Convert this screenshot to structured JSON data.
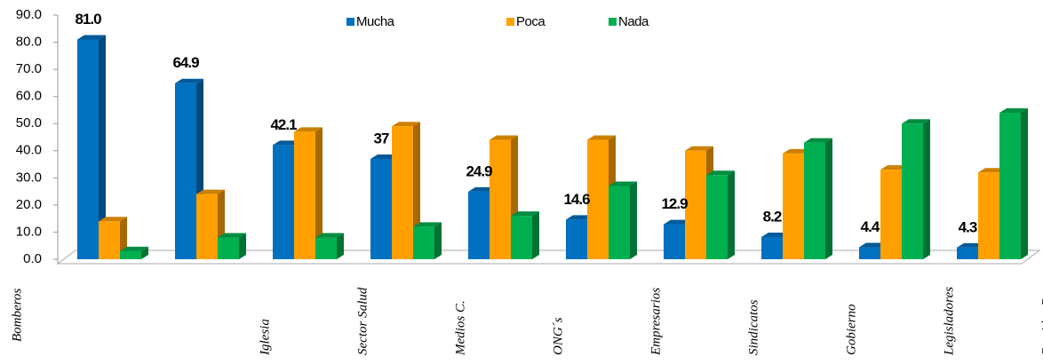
{
  "chart_data": {
    "type": "bar",
    "categories": [
      "Bomberos",
      "Iglesia",
      "Sector Salud",
      "Medios C.",
      "ONG´s",
      "Empresarios",
      "Sindicatos",
      "Gobierno",
      "Legisladores",
      "Partidos P."
    ],
    "series": [
      {
        "name": "Mucha",
        "color": "#0070c0",
        "values": [
          81.0,
          64.9,
          42.1,
          37,
          24.9,
          14.6,
          12.9,
          8.2,
          4.4,
          4.3
        ],
        "value_labels": [
          "81.0",
          "64.9",
          "42.1",
          "37",
          "24.9",
          "14.6",
          "12.9",
          "8.2",
          "4.4",
          "4.3"
        ]
      },
      {
        "name": "Poca",
        "color": "#ffa000",
        "values": [
          14,
          24,
          47,
          49,
          44,
          44,
          40,
          39,
          33,
          32
        ]
      },
      {
        "name": "Nada",
        "color": "#00b050",
        "values": [
          3,
          8,
          8,
          12,
          16,
          27,
          31,
          43,
          50,
          54
        ]
      }
    ],
    "ylim": [
      0,
      90
    ],
    "yticks": [
      {
        "value": 0,
        "label": "0.0"
      },
      {
        "value": 10,
        "label": "10.0"
      },
      {
        "value": 20,
        "label": "20.0"
      },
      {
        "value": 30,
        "label": "30.0"
      },
      {
        "value": 40,
        "label": "40.0"
      },
      {
        "value": 50,
        "label": "50.0"
      },
      {
        "value": 60,
        "label": "60.0"
      },
      {
        "value": 70,
        "label": "70.0"
      },
      {
        "value": 80,
        "label": "80.0"
      },
      {
        "value": 90,
        "label": "90.0"
      }
    ],
    "grid": false,
    "legend": "top"
  }
}
